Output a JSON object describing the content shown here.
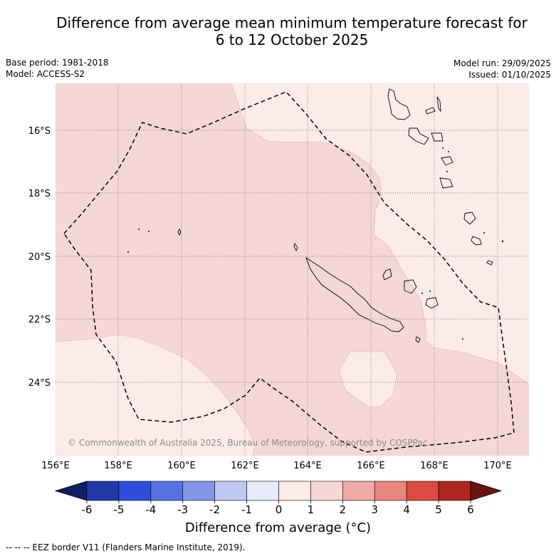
{
  "title_line1": "Difference from average mean minimum temperature forecast for",
  "title_line2": "6 to 12 October 2025",
  "base_period": "Base period: 1981-2018",
  "model": "Model: ACCESS-S2",
  "model_run": "Model run: 29/09/2025",
  "issued": "Issued: 01/10/2025",
  "copyright": "© Commonwealth of Australia 2025, Bureau of Meteorology, supported by COSPPac",
  "lat_labels": [
    "16°S",
    "18°S",
    "20°S",
    "22°S",
    "24°S"
  ],
  "lon_labels": [
    "156°E",
    "158°E",
    "160°E",
    "162°E",
    "164°E",
    "166°E",
    "168°E",
    "170°E"
  ],
  "colorbar": {
    "ticks": [
      "-6",
      "-5",
      "-4",
      "-3",
      "-2",
      "-1",
      "0",
      "1",
      "2",
      "3",
      "4",
      "5",
      "6"
    ],
    "colors": [
      "#0f1e63",
      "#2139a6",
      "#2e4ddd",
      "#5672e3",
      "#8397e8",
      "#bfc8f3",
      "#e8ebf9",
      "#fcebe8",
      "#f5d7d6",
      "#efaaa5",
      "#e9857d",
      "#dd4a3f",
      "#ad2720",
      "#6a1410"
    ],
    "label": "Difference from average (°C)"
  },
  "footnote": "-- -- -- EEZ border V11 (Flanders Marine Institute, 2019).",
  "colors": {
    "light": "#fcebe8",
    "mid": "#f5d7d6"
  }
}
